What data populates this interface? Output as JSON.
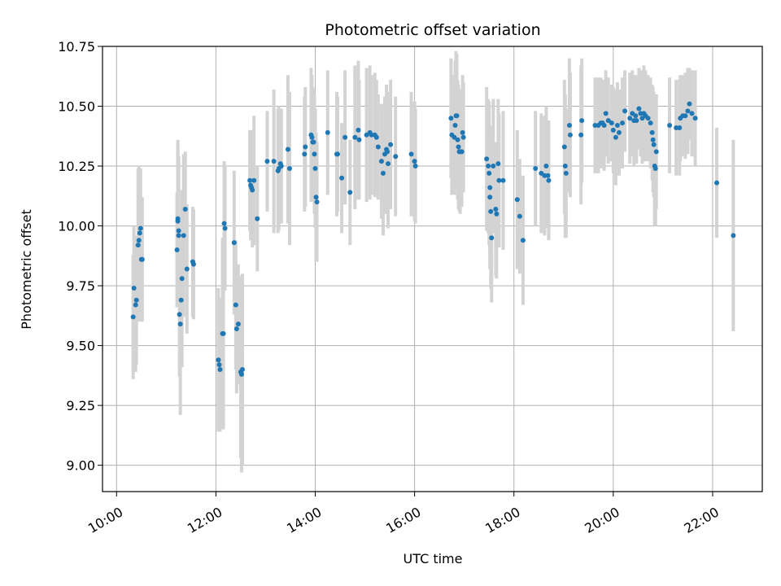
{
  "chart_data": {
    "type": "scatter",
    "title": "Photometric offset variation",
    "xlabel": "UTC time",
    "ylabel": "Photometric offset",
    "x_ticks": [
      "10:00",
      "12:00",
      "14:00",
      "16:00",
      "18:00",
      "20:00",
      "22:00"
    ],
    "y_ticks": [
      "9.00",
      "9.25",
      "9.50",
      "9.75",
      "10.00",
      "10.25",
      "10.50",
      "10.75"
    ],
    "xlim": [
      "09:43",
      "23:00"
    ],
    "ylim": [
      8.89,
      10.75
    ],
    "grid": true,
    "marker_color": "#1f77b4",
    "errorbar_color": "#d3d3d3",
    "points": [
      {
        "t": "10:20",
        "y": 9.62,
        "err": 0.26
      },
      {
        "t": "10:21",
        "y": 9.74,
        "err": 0.26
      },
      {
        "t": "10:23",
        "y": 9.67,
        "err": 0.28
      },
      {
        "t": "10:24",
        "y": 9.69,
        "err": 0.27
      },
      {
        "t": "10:26",
        "y": 9.92,
        "err": 0.32
      },
      {
        "t": "10:27",
        "y": 9.94,
        "err": 0.31
      },
      {
        "t": "10:28",
        "y": 9.97,
        "err": 0.27
      },
      {
        "t": "10:29",
        "y": 9.99,
        "err": 0.25
      },
      {
        "t": "10:30",
        "y": 9.86,
        "err": 0.26
      },
      {
        "t": "10:31",
        "y": 9.86,
        "err": 0.26
      },
      {
        "t": "11:13",
        "y": 9.9,
        "err": 0.24
      },
      {
        "t": "11:14",
        "y": 10.03,
        "err": 0.33
      },
      {
        "t": "11:14",
        "y": 10.02,
        "err": 0.33
      },
      {
        "t": "11:15",
        "y": 9.98,
        "err": 0.31
      },
      {
        "t": "11:15",
        "y": 9.96,
        "err": 0.3
      },
      {
        "t": "11:16",
        "y": 9.63,
        "err": 0.26
      },
      {
        "t": "11:17",
        "y": 9.59,
        "err": 0.38
      },
      {
        "t": "11:18",
        "y": 9.69,
        "err": 0.27
      },
      {
        "t": "11:19",
        "y": 9.78,
        "err": 0.37
      },
      {
        "t": "11:21",
        "y": 9.96,
        "err": 0.34
      },
      {
        "t": "11:23",
        "y": 10.07,
        "err": 0.24
      },
      {
        "t": "11:25",
        "y": 9.82,
        "err": 0.27
      },
      {
        "t": "11:32",
        "y": 9.85,
        "err": 0.23
      },
      {
        "t": "11:33",
        "y": 9.84,
        "err": 0.23
      },
      {
        "t": "12:03",
        "y": 9.44,
        "err": 0.3
      },
      {
        "t": "12:04",
        "y": 9.42,
        "err": 0.28
      },
      {
        "t": "12:05",
        "y": 9.4,
        "err": 0.26
      },
      {
        "t": "12:08",
        "y": 9.55,
        "err": 0.4
      },
      {
        "t": "12:09",
        "y": 9.55,
        "err": 0.4
      },
      {
        "t": "12:10",
        "y": 10.01,
        "err": 0.26
      },
      {
        "t": "12:11",
        "y": 9.99,
        "err": 0.26
      },
      {
        "t": "12:22",
        "y": 9.93,
        "err": 0.3
      },
      {
        "t": "12:24",
        "y": 9.67,
        "err": 0.27
      },
      {
        "t": "12:25",
        "y": 9.57,
        "err": 0.27
      },
      {
        "t": "12:27",
        "y": 9.59,
        "err": 0.25
      },
      {
        "t": "12:30",
        "y": 9.39,
        "err": 0.36
      },
      {
        "t": "12:31",
        "y": 9.38,
        "err": 0.41
      },
      {
        "t": "12:32",
        "y": 9.4,
        "err": 0.4
      },
      {
        "t": "12:41",
        "y": 10.19,
        "err": 0.21
      },
      {
        "t": "12:42",
        "y": 10.17,
        "err": 0.23
      },
      {
        "t": "12:43",
        "y": 10.16,
        "err": 0.22
      },
      {
        "t": "12:44",
        "y": 10.15,
        "err": 0.24
      },
      {
        "t": "12:46",
        "y": 10.19,
        "err": 0.27
      },
      {
        "t": "12:50",
        "y": 10.03,
        "err": 0.22
      },
      {
        "t": "13:02",
        "y": 10.27,
        "err": 0.21
      },
      {
        "t": "13:10",
        "y": 10.27,
        "err": 0.3
      },
      {
        "t": "13:15",
        "y": 10.23,
        "err": 0.26
      },
      {
        "t": "13:16",
        "y": 10.24,
        "err": 0.26
      },
      {
        "t": "13:18",
        "y": 10.26,
        "err": 0.22
      },
      {
        "t": "13:19",
        "y": 10.25,
        "err": 0.24
      },
      {
        "t": "13:27",
        "y": 10.32,
        "err": 0.31
      },
      {
        "t": "13:29",
        "y": 10.24,
        "err": 0.32
      },
      {
        "t": "13:47",
        "y": 10.3,
        "err": 0.24
      },
      {
        "t": "13:48",
        "y": 10.33,
        "err": 0.25
      },
      {
        "t": "13:55",
        "y": 10.38,
        "err": 0.28
      },
      {
        "t": "13:56",
        "y": 10.37,
        "err": 0.26
      },
      {
        "t": "13:57",
        "y": 10.35,
        "err": 0.23
      },
      {
        "t": "13:58",
        "y": 10.35,
        "err": 0.22
      },
      {
        "t": "13:59",
        "y": 10.3,
        "err": 0.25
      },
      {
        "t": "14:00",
        "y": 10.24,
        "err": 0.25
      },
      {
        "t": "14:01",
        "y": 10.12,
        "err": 0.27
      },
      {
        "t": "14:02",
        "y": 10.1,
        "err": 0.25
      },
      {
        "t": "14:15",
        "y": 10.39,
        "err": 0.26
      },
      {
        "t": "14:26",
        "y": 10.3,
        "err": 0.26
      },
      {
        "t": "14:27",
        "y": 10.3,
        "err": 0.24
      },
      {
        "t": "14:32",
        "y": 10.2,
        "err": 0.23
      },
      {
        "t": "14:36",
        "y": 10.37,
        "err": 0.28
      },
      {
        "t": "14:42",
        "y": 10.14,
        "err": 0.22
      },
      {
        "t": "14:48",
        "y": 10.37,
        "err": 0.3
      },
      {
        "t": "14:52",
        "y": 10.4,
        "err": 0.29
      },
      {
        "t": "14:53",
        "y": 10.36,
        "err": 0.25
      },
      {
        "t": "15:02",
        "y": 10.38,
        "err": 0.28
      },
      {
        "t": "15:06",
        "y": 10.39,
        "err": 0.28
      },
      {
        "t": "15:08",
        "y": 10.38,
        "err": 0.25
      },
      {
        "t": "15:12",
        "y": 10.38,
        "err": 0.26
      },
      {
        "t": "15:14",
        "y": 10.37,
        "err": 0.24
      },
      {
        "t": "15:16",
        "y": 10.33,
        "err": 0.22
      },
      {
        "t": "15:20",
        "y": 10.27,
        "err": 0.24
      },
      {
        "t": "15:22",
        "y": 10.22,
        "err": 0.26
      },
      {
        "t": "15:24",
        "y": 10.3,
        "err": 0.24
      },
      {
        "t": "15:26",
        "y": 10.32,
        "err": 0.27
      },
      {
        "t": "15:27",
        "y": 10.31,
        "err": 0.25
      },
      {
        "t": "15:28",
        "y": 10.26,
        "err": 0.27
      },
      {
        "t": "15:31",
        "y": 10.34,
        "err": 0.27
      },
      {
        "t": "15:37",
        "y": 10.29,
        "err": 0.25
      },
      {
        "t": "15:56",
        "y": 10.3,
        "err": 0.26
      },
      {
        "t": "16:00",
        "y": 10.27,
        "err": 0.25
      },
      {
        "t": "16:01",
        "y": 10.25,
        "err": 0.24
      },
      {
        "t": "16:44",
        "y": 10.45,
        "err": 0.25
      },
      {
        "t": "16:45",
        "y": 10.38,
        "err": 0.25
      },
      {
        "t": "16:48",
        "y": 10.37,
        "err": 0.24
      },
      {
        "t": "16:49",
        "y": 10.42,
        "err": 0.27
      },
      {
        "t": "16:50",
        "y": 10.46,
        "err": 0.27
      },
      {
        "t": "16:51",
        "y": 10.46,
        "err": 0.26
      },
      {
        "t": "16:52",
        "y": 10.36,
        "err": 0.25
      },
      {
        "t": "16:53",
        "y": 10.33,
        "err": 0.26
      },
      {
        "t": "16:54",
        "y": 10.31,
        "err": 0.25
      },
      {
        "t": "16:55",
        "y": 10.31,
        "err": 0.26
      },
      {
        "t": "16:57",
        "y": 10.31,
        "err": 0.23
      },
      {
        "t": "16:58",
        "y": 10.39,
        "err": 0.24
      },
      {
        "t": "16:59",
        "y": 10.37,
        "err": 0.23
      },
      {
        "t": "17:27",
        "y": 10.28,
        "err": 0.3
      },
      {
        "t": "17:29",
        "y": 10.25,
        "err": 0.28
      },
      {
        "t": "17:30",
        "y": 10.22,
        "err": 0.3
      },
      {
        "t": "17:31",
        "y": 10.16,
        "err": 0.26
      },
      {
        "t": "17:31",
        "y": 10.12,
        "err": 0.3
      },
      {
        "t": "17:32",
        "y": 10.06,
        "err": 0.32
      },
      {
        "t": "17:33",
        "y": 9.95,
        "err": 0.27
      },
      {
        "t": "17:35",
        "y": 10.25,
        "err": 0.28
      },
      {
        "t": "17:38",
        "y": 10.07,
        "err": 0.28
      },
      {
        "t": "17:39",
        "y": 10.05,
        "err": 0.27
      },
      {
        "t": "17:41",
        "y": 10.26,
        "err": 0.27
      },
      {
        "t": "17:42",
        "y": 10.19,
        "err": 0.28
      },
      {
        "t": "17:47",
        "y": 10.19,
        "err": 0.29
      },
      {
        "t": "18:04",
        "y": 10.11,
        "err": 0.29
      },
      {
        "t": "18:07",
        "y": 10.04,
        "err": 0.24
      },
      {
        "t": "18:11",
        "y": 9.94,
        "err": 0.27
      },
      {
        "t": "18:26",
        "y": 10.24,
        "err": 0.24
      },
      {
        "t": "18:33",
        "y": 10.22,
        "err": 0.25
      },
      {
        "t": "18:37",
        "y": 10.21,
        "err": 0.25
      },
      {
        "t": "18:39",
        "y": 10.25,
        "err": 0.25
      },
      {
        "t": "18:41",
        "y": 10.21,
        "err": 0.22
      },
      {
        "t": "18:42",
        "y": 10.19,
        "err": 0.25
      },
      {
        "t": "19:01",
        "y": 10.33,
        "err": 0.28
      },
      {
        "t": "19:02",
        "y": 10.25,
        "err": 0.3
      },
      {
        "t": "19:03",
        "y": 10.22,
        "err": 0.27
      },
      {
        "t": "19:07",
        "y": 10.42,
        "err": 0.28
      },
      {
        "t": "19:08",
        "y": 10.38,
        "err": 0.26
      },
      {
        "t": "19:21",
        "y": 10.38,
        "err": 0.29
      },
      {
        "t": "19:22",
        "y": 10.44,
        "err": 0.26
      },
      {
        "t": "19:38",
        "y": 10.42,
        "err": 0.2
      },
      {
        "t": "19:42",
        "y": 10.42,
        "err": 0.2
      },
      {
        "t": "19:45",
        "y": 10.43,
        "err": 0.19
      },
      {
        "t": "19:47",
        "y": 10.43,
        "err": 0.18
      },
      {
        "t": "19:49",
        "y": 10.42,
        "err": 0.19
      },
      {
        "t": "19:51",
        "y": 10.47,
        "err": 0.18
      },
      {
        "t": "19:54",
        "y": 10.44,
        "err": 0.18
      },
      {
        "t": "19:58",
        "y": 10.43,
        "err": 0.16
      },
      {
        "t": "20:00",
        "y": 10.4,
        "err": 0.18
      },
      {
        "t": "20:03",
        "y": 10.37,
        "err": 0.2
      },
      {
        "t": "20:05",
        "y": 10.42,
        "err": 0.18
      },
      {
        "t": "20:07",
        "y": 10.39,
        "err": 0.18
      },
      {
        "t": "20:11",
        "y": 10.43,
        "err": 0.19
      },
      {
        "t": "20:14",
        "y": 10.48,
        "err": 0.17
      },
      {
        "t": "20:20",
        "y": 10.45,
        "err": 0.19
      },
      {
        "t": "20:23",
        "y": 10.47,
        "err": 0.18
      },
      {
        "t": "20:25",
        "y": 10.44,
        "err": 0.19
      },
      {
        "t": "20:27",
        "y": 10.46,
        "err": 0.17
      },
      {
        "t": "20:28",
        "y": 10.44,
        "err": 0.18
      },
      {
        "t": "20:31",
        "y": 10.49,
        "err": 0.17
      },
      {
        "t": "20:33",
        "y": 10.47,
        "err": 0.18
      },
      {
        "t": "20:35",
        "y": 10.45,
        "err": 0.19
      },
      {
        "t": "20:37",
        "y": 10.47,
        "err": 0.2
      },
      {
        "t": "20:39",
        "y": 10.46,
        "err": 0.19
      },
      {
        "t": "20:42",
        "y": 10.45,
        "err": 0.18
      },
      {
        "t": "20:45",
        "y": 10.43,
        "err": 0.19
      },
      {
        "t": "20:47",
        "y": 10.39,
        "err": 0.2
      },
      {
        "t": "20:48",
        "y": 10.36,
        "err": 0.22
      },
      {
        "t": "20:49",
        "y": 10.34,
        "err": 0.22
      },
      {
        "t": "20:50",
        "y": 10.25,
        "err": 0.25
      },
      {
        "t": "20:51",
        "y": 10.24,
        "err": 0.24
      },
      {
        "t": "20:52",
        "y": 10.31,
        "err": 0.24
      },
      {
        "t": "21:08",
        "y": 10.42,
        "err": 0.2
      },
      {
        "t": "21:16",
        "y": 10.41,
        "err": 0.2
      },
      {
        "t": "21:20",
        "y": 10.41,
        "err": 0.2
      },
      {
        "t": "21:21",
        "y": 10.45,
        "err": 0.18
      },
      {
        "t": "21:24",
        "y": 10.46,
        "err": 0.17
      },
      {
        "t": "21:27",
        "y": 10.46,
        "err": 0.18
      },
      {
        "t": "21:30",
        "y": 10.48,
        "err": 0.18
      },
      {
        "t": "21:32",
        "y": 10.51,
        "err": 0.15
      },
      {
        "t": "21:35",
        "y": 10.47,
        "err": 0.18
      },
      {
        "t": "21:39",
        "y": 10.45,
        "err": 0.2
      },
      {
        "t": "22:05",
        "y": 10.18,
        "err": 0.23
      },
      {
        "t": "22:25",
        "y": 9.96,
        "err": 0.4
      }
    ]
  }
}
